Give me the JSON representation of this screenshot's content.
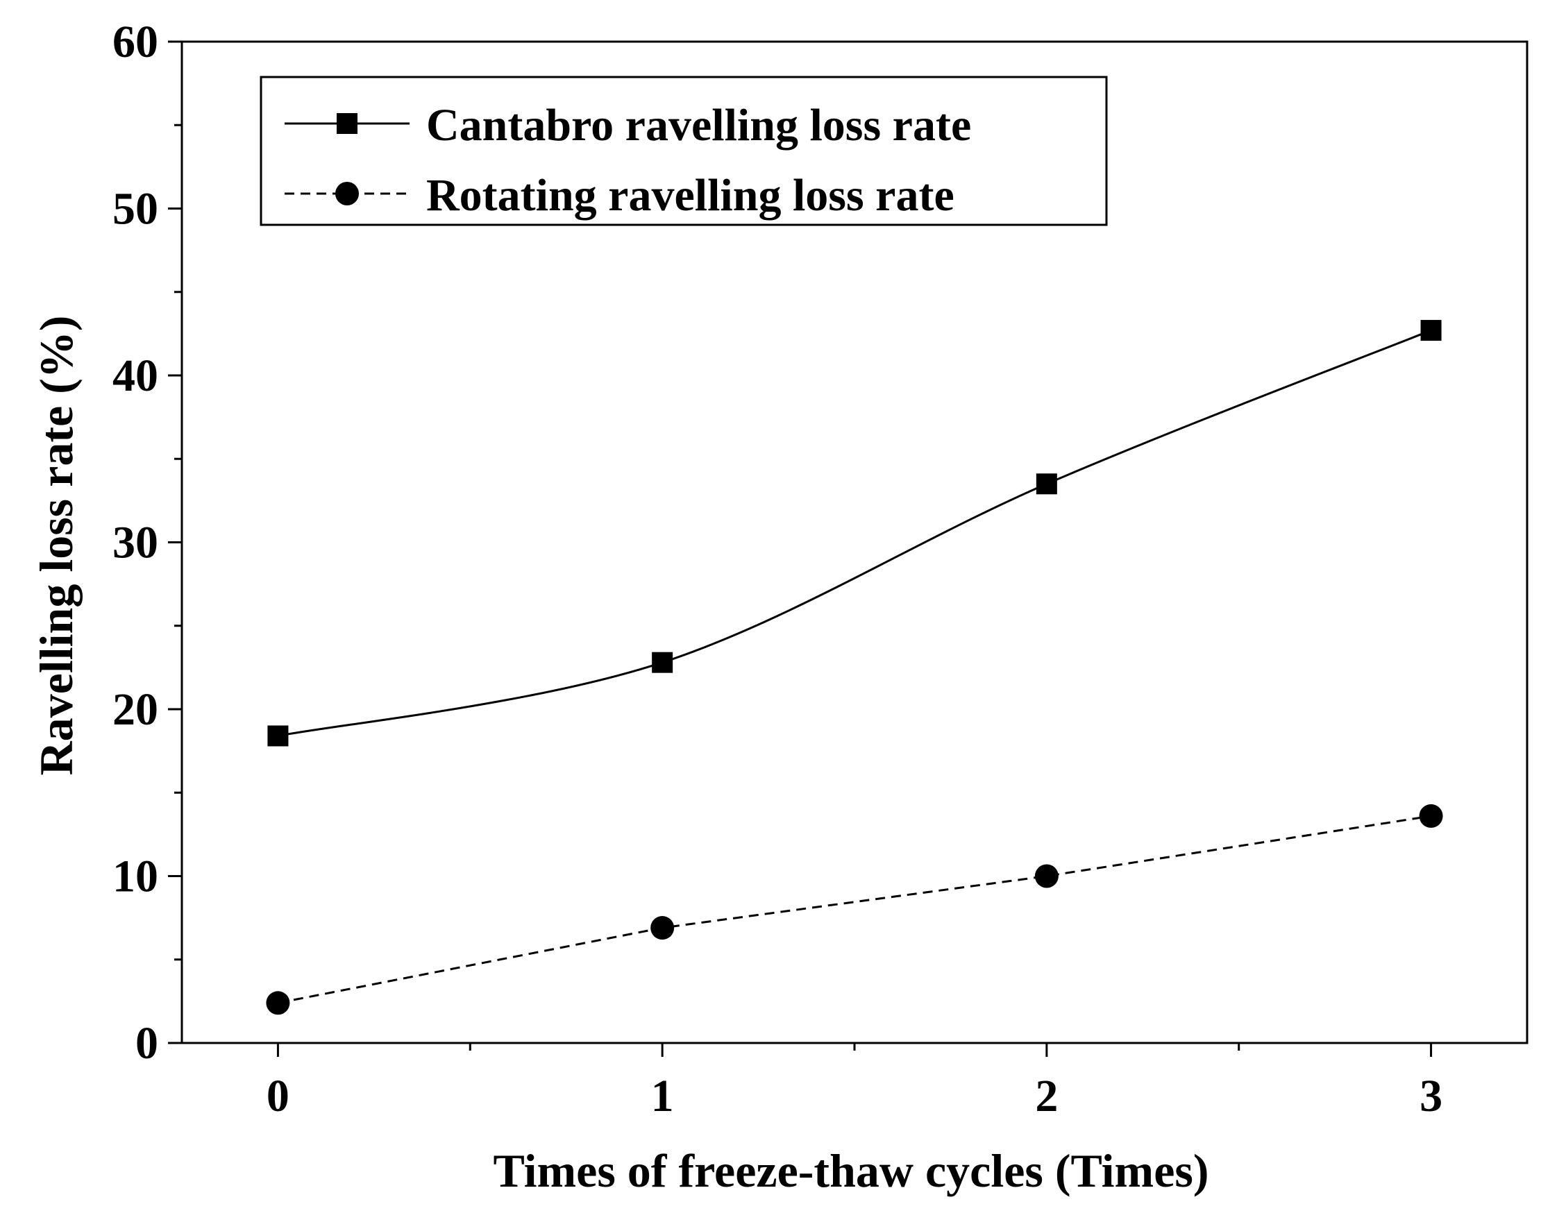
{
  "chart_data": {
    "type": "line",
    "title": "",
    "xlabel": "Times of freeze-thaw cycles (Times)",
    "ylabel": "Ravelling loss rate (%)",
    "xlim": [
      -0.25,
      3.25
    ],
    "ylim": [
      0,
      60
    ],
    "x_ticks": [
      0,
      1,
      2,
      3
    ],
    "x_tick_labels": [
      "0",
      "1",
      "2",
      "3"
    ],
    "y_ticks": [
      0,
      10,
      20,
      30,
      40,
      50,
      60
    ],
    "y_tick_labels": [
      "0",
      "10",
      "20",
      "30",
      "40",
      "50",
      "60"
    ],
    "x_minor_ticks": [
      0.5,
      1.5,
      2.5
    ],
    "y_minor_ticks": [
      5,
      15,
      25,
      35,
      45,
      55
    ],
    "grid": false,
    "legend_position": "top-left",
    "x": [
      0,
      1,
      2,
      3
    ],
    "series": [
      {
        "name": "Cantabro ravelling loss rate",
        "values": [
          18.4,
          22.8,
          33.5,
          42.7
        ],
        "marker": "square",
        "line_style": "solid",
        "smooth": true,
        "color": "#000000"
      },
      {
        "name": "Rotating ravelling loss rate",
        "values": [
          2.4,
          6.9,
          10.0,
          13.6
        ],
        "marker": "circle",
        "line_style": "dashed",
        "smooth": false,
        "color": "#000000"
      }
    ]
  }
}
